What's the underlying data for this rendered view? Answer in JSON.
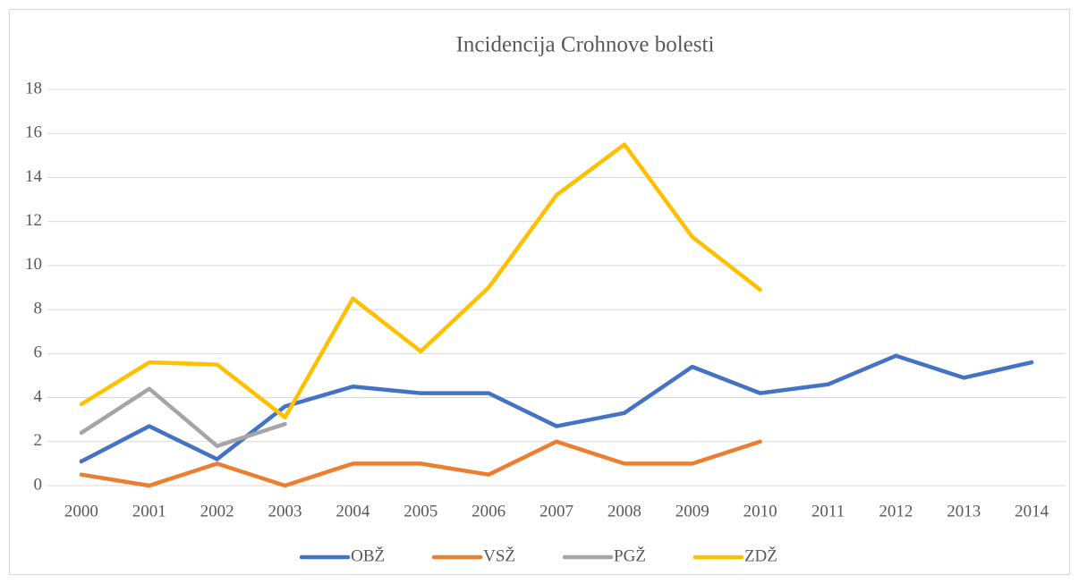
{
  "chart_data": {
    "type": "line",
    "title": "Incidencija Crohnove bolesti",
    "categories": [
      "2000",
      "2001",
      "2002",
      "2003",
      "2004",
      "2005",
      "2006",
      "2007",
      "2008",
      "2009",
      "2010",
      "2011",
      "2012",
      "2013",
      "2014"
    ],
    "series": [
      {
        "name": "OBŽ",
        "color": "#4472c4",
        "values": [
          1.1,
          2.7,
          1.2,
          3.6,
          4.5,
          4.2,
          4.2,
          2.7,
          3.3,
          5.4,
          4.2,
          4.6,
          5.9,
          4.9,
          5.6
        ]
      },
      {
        "name": "VSŽ",
        "color": "#ed7d31",
        "values": [
          0.5,
          0,
          1,
          0,
          1,
          1,
          0.5,
          2,
          1,
          1,
          2,
          null,
          null,
          null,
          null
        ]
      },
      {
        "name": "PGŽ",
        "color": "#a5a5a5",
        "values": [
          2.4,
          4.4,
          1.8,
          2.8,
          null,
          null,
          null,
          null,
          null,
          null,
          null,
          null,
          null,
          null,
          null
        ]
      },
      {
        "name": "ZDŽ",
        "color": "#ffc000",
        "values": [
          3.7,
          5.6,
          5.5,
          3.1,
          8.5,
          6.1,
          9.0,
          13.2,
          15.5,
          11.3,
          8.9,
          null,
          null,
          null,
          null
        ]
      }
    ],
    "ylim": [
      0,
      18
    ],
    "yticks": [
      0,
      2,
      4,
      6,
      8,
      10,
      12,
      14,
      16,
      18
    ],
    "grid": true,
    "legend": "bottom"
  }
}
